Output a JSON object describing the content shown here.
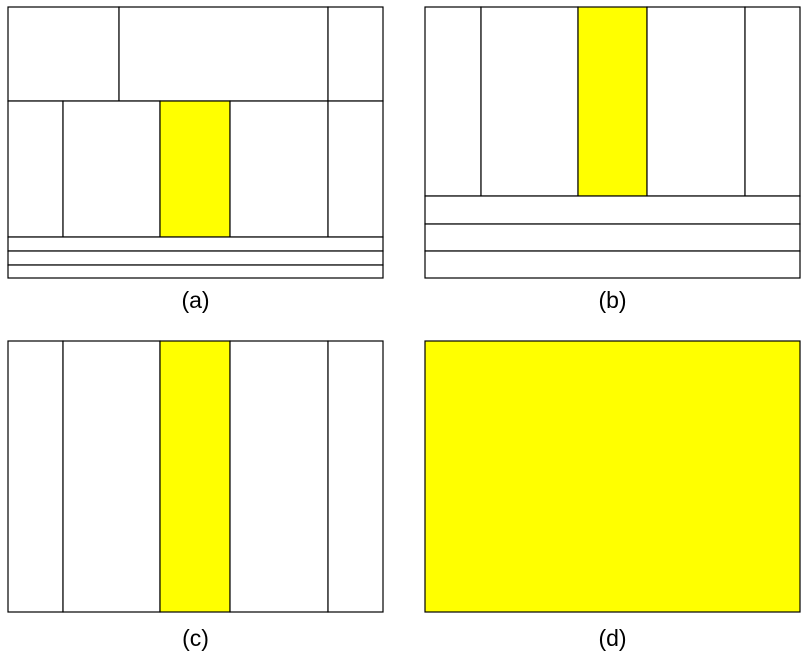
{
  "colors": {
    "highlight": "#ffff00",
    "line": "#000000",
    "background": "#ffffff"
  },
  "panels": {
    "a": {
      "label": "(a)"
    },
    "b": {
      "label": "(b)"
    },
    "c": {
      "label": "(c)"
    },
    "d": {
      "label": "(d)"
    }
  }
}
